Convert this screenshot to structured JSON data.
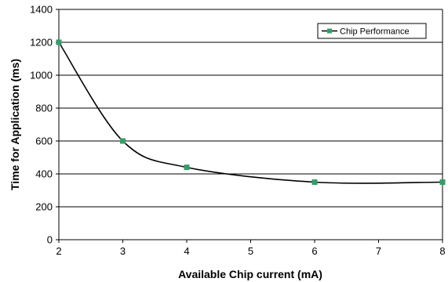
{
  "chart_data": {
    "type": "line",
    "title": "",
    "xlabel": "Available Chip current (mA)",
    "ylabel": "Time for Application (ms)",
    "x_ticks": [
      "2",
      "3",
      "4",
      "5",
      "6",
      "7",
      "8"
    ],
    "y_ticks": [
      "0",
      "200",
      "400",
      "600",
      "800",
      "1000",
      "1200",
      "1400"
    ],
    "xlim": [
      2,
      8
    ],
    "ylim": [
      0,
      1400
    ],
    "grid": "horizontal",
    "legend": "top-right",
    "smooth": true,
    "series": [
      {
        "name": "Chip Performance",
        "color": "#000000",
        "marker_color": "#3a9a6a",
        "marker": "square",
        "x": [
          2,
          3,
          4,
          6,
          8
        ],
        "y": [
          1200,
          600,
          440,
          350,
          350
        ]
      }
    ]
  }
}
